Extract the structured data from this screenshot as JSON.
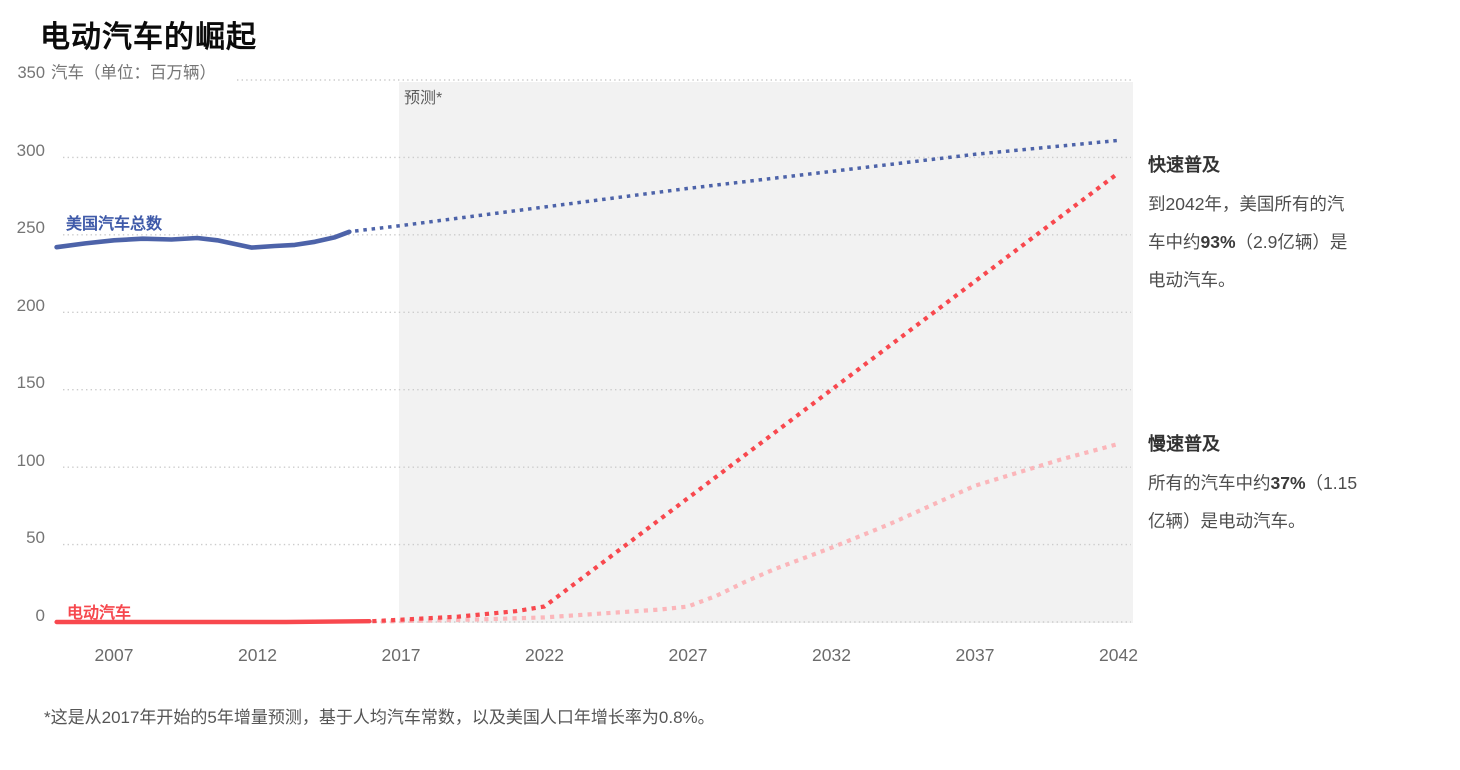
{
  "page": {
    "title": "电动汽车的崛起",
    "footnote": "*这是从2017年开始的5年增量预测，基于人均汽车常数，以及美国人口年增长率为0.8%。"
  },
  "chart_data": {
    "type": "line",
    "title": "电动汽车的崛起",
    "y_axis": {
      "unit_top_tick": "350",
      "unit_label": "汽车（单位：百万辆）",
      "ticks": [
        350,
        300,
        250,
        200,
        150,
        100,
        50,
        0
      ],
      "ylim": [
        0,
        350
      ]
    },
    "x_axis": {
      "ticks": [
        2007,
        2012,
        2017,
        2022,
        2027,
        2032,
        2037,
        2042
      ],
      "range": [
        2005,
        2042.5
      ]
    },
    "grid": {
      "color": "#cccccc",
      "style": "dotted"
    },
    "forecast": {
      "label": "预测*",
      "start_year": 2017,
      "bg_color": "#f2f2f2"
    },
    "series": [
      {
        "id": "us-total",
        "name": "美国汽车总数",
        "color": "#4d63a9",
        "solid": [
          [
            2005,
            242
          ],
          [
            2006,
            244.5
          ],
          [
            2007,
            246.5
          ],
          [
            2008,
            247.5
          ],
          [
            2009,
            247
          ],
          [
            2009.9,
            248
          ],
          [
            2010.6,
            246.5
          ],
          [
            2011.8,
            241.8
          ],
          [
            2012.6,
            242.8
          ],
          [
            2013.3,
            243.5
          ],
          [
            2014,
            245.5
          ],
          [
            2014.7,
            248.5
          ],
          [
            2015.2,
            252
          ]
        ],
        "dotted": [
          [
            2015.4,
            252.5
          ],
          [
            2017,
            256
          ],
          [
            2022,
            268
          ],
          [
            2027,
            280
          ],
          [
            2032,
            291
          ],
          [
            2037,
            302
          ],
          [
            2042,
            311
          ]
        ]
      },
      {
        "id": "ev-fast",
        "name": "电动汽车",
        "scenario": "快速普及",
        "color": "#f8484e",
        "solid": [
          [
            2005,
            0
          ],
          [
            2013,
            0
          ],
          [
            2015.9,
            0.5
          ]
        ],
        "dotted": [
          [
            2016,
            0.5
          ],
          [
            2017,
            1.5
          ],
          [
            2019,
            3.5
          ],
          [
            2021,
            7
          ],
          [
            2022,
            10
          ],
          [
            2023,
            24
          ],
          [
            2027,
            80
          ],
          [
            2032,
            150
          ],
          [
            2037,
            220
          ],
          [
            2042,
            290
          ]
        ]
      },
      {
        "id": "ev-slow",
        "name": "电动汽车",
        "scenario": "慢速普及",
        "color": "#fbb6ba",
        "solid": [],
        "dotted": [
          [
            2016.3,
            0.3
          ],
          [
            2018,
            1
          ],
          [
            2020,
            1.8
          ],
          [
            2022,
            3
          ],
          [
            2024,
            5.5
          ],
          [
            2026,
            8
          ],
          [
            2027,
            10
          ],
          [
            2028,
            17
          ],
          [
            2029,
            26
          ],
          [
            2030,
            34
          ],
          [
            2032,
            48
          ],
          [
            2034,
            63
          ],
          [
            2037,
            88
          ],
          [
            2040,
            105
          ],
          [
            2042,
            115
          ]
        ]
      }
    ],
    "annotations": [
      {
        "id": "fast",
        "heading": "快速普及",
        "body_before": "到2042年，美国所有的汽车中约",
        "body_bold": "93%",
        "body_after": "（2.9亿辆）是电动汽车。"
      },
      {
        "id": "slow",
        "heading": "慢速普及",
        "body_before": "所有的汽车中约",
        "body_bold": "37%",
        "body_after": "（1.15亿辆）是电动汽车。"
      }
    ]
  }
}
